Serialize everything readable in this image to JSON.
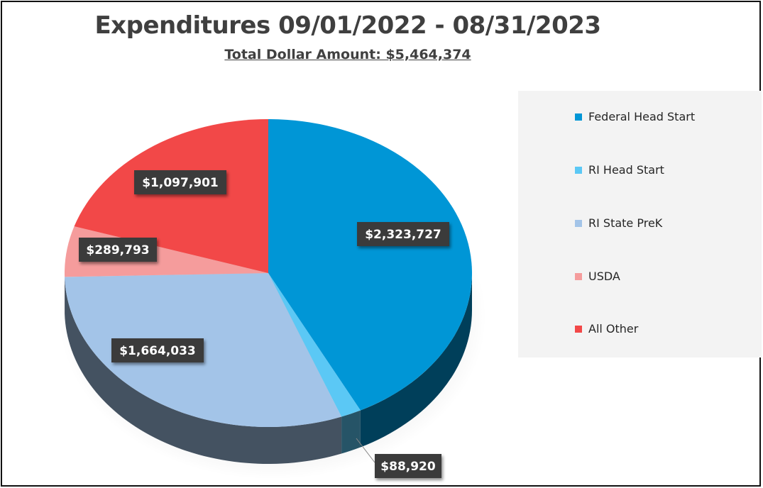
{
  "chart_data": {
    "type": "pie",
    "title": "Expenditures 09/01/2022 - 08/31/2023",
    "subtitle": "Total Dollar Amount: $5,464,374",
    "categories": [
      "Federal Head Start",
      "RI Head Start",
      "RI State PreK",
      "USDA",
      "All Other"
    ],
    "values": [
      2323727,
      88920,
      1664033,
      289793,
      1097901
    ],
    "value_labels": [
      "$2,323,727",
      "$88,920",
      "$1,664,033",
      "$289,793",
      "$1,097,901"
    ],
    "colors": [
      "#0096d6",
      "#5bc8f5",
      "#a3c4e8",
      "#f59c9c",
      "#f24848"
    ],
    "legend_position": "right",
    "style": "3d"
  }
}
